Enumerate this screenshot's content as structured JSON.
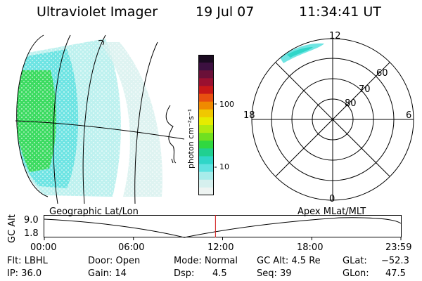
{
  "header": {
    "instrument": "Ultraviolet Imager",
    "date": "19 Jul 07",
    "time": "11:34:41 UT"
  },
  "colorbar": {
    "unit_label": "photon cm⁻²s⁻¹",
    "ticks": [
      "100",
      "10"
    ],
    "colors": [
      "#1a0a20",
      "#3c1040",
      "#6a1038",
      "#9a1030",
      "#c81818",
      "#e85010",
      "#f08a00",
      "#f0c800",
      "#e6ec00",
      "#b0ea10",
      "#70e020",
      "#30d840",
      "#20d090",
      "#30d6c8",
      "#60e2e0",
      "#a8ecea",
      "#d6f0ee",
      "#eef4f2"
    ]
  },
  "polar_plot": {
    "mlt_labels": [
      "12",
      "18",
      "6",
      "0"
    ],
    "lat_labels": [
      "60",
      "70",
      "80"
    ]
  },
  "timeline": {
    "left_label": "Geographic Lat/Lon",
    "right_label": "Apex MLat/MLT",
    "axis_label": "GC Alt",
    "y_ticks": [
      "9.0",
      "1.8"
    ],
    "x_ticks": [
      "00:00",
      "06:00",
      "12:00",
      "18:00",
      "23:59"
    ],
    "current_time_fraction": 0.48
  },
  "status": {
    "flt": "Flt: LBHL",
    "ip": "IP: 36.0",
    "door": "Door: Open",
    "gain": "Gain: 14",
    "mode": "Mode: Normal",
    "dsp_label": "Dsp:",
    "dsp_value": "4.5",
    "gcalt": "GC Alt: 4.5 Re",
    "seq": "Seq: 39",
    "glat_label": "GLat:",
    "glat_value": "−52.3",
    "glon_label": "GLon:",
    "glon_value": "47.5"
  }
}
